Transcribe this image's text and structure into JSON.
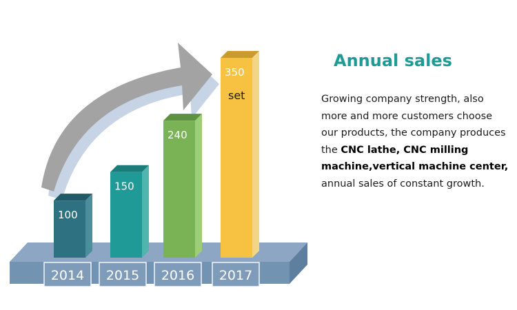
{
  "title": "Annual sales",
  "description": {
    "part1": "Growing company strength, also more and more customers choose our products, the company produces the ",
    "bold1": "CNC lathe, CNC milling machine,vertical machine center,",
    "part2": " annual sales of constant growth."
  },
  "chart_data": {
    "type": "bar",
    "categories": [
      "2014",
      "2015",
      "2016",
      "2017"
    ],
    "values": [
      100,
      150,
      240,
      350
    ],
    "value_labels": [
      "100",
      "150",
      "240",
      "350"
    ],
    "unit_label": "set",
    "title": "",
    "xlabel": "",
    "ylabel": "",
    "ylim": [
      0,
      350
    ],
    "grid": false,
    "legend": "none",
    "trend_arrow": "up",
    "colors": {
      "bar_fronts": [
        "#2e7180",
        "#209a97",
        "#7ab356",
        "#f7c142"
      ],
      "bar_sides": [
        "#4b8f9c",
        "#50b5ad",
        "#9ccd77",
        "#f3d685"
      ],
      "bar_tops": [
        "#215966",
        "#1a7b79",
        "#5f9143",
        "#c99a2e"
      ],
      "platform_top": "#8ca6c3",
      "platform_front": "#7393b2",
      "platform_side": "#5f7f9f",
      "label_box": "#7e9bba",
      "arrow": "#a3a3a3",
      "arrow_shadow": "#c6d4e6"
    }
  }
}
